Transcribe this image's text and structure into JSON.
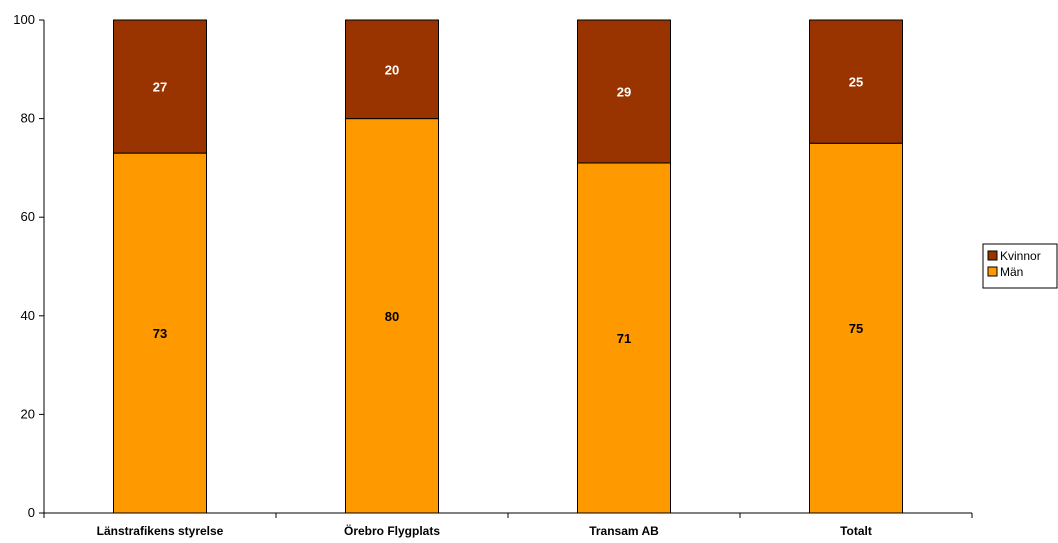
{
  "chart_data": {
    "type": "bar",
    "stacked": true,
    "title": "",
    "xlabel": "",
    "ylabel": "",
    "categories": [
      "Länstrafikens styrelse",
      "Örebro Flygplats",
      "Transam AB",
      "Totalt"
    ],
    "series": [
      {
        "name": "Män",
        "values": [
          73,
          80,
          71,
          75
        ],
        "color": "#FF9900",
        "label_color": "#000000"
      },
      {
        "name": "Kvinnor",
        "values": [
          27,
          20,
          29,
          25
        ],
        "color": "#993300",
        "label_color": "#FFFFFF"
      }
    ],
    "ylim": [
      0,
      100
    ],
    "yticks": [
      0,
      20,
      40,
      60,
      80,
      100
    ],
    "legend_position": "right",
    "legend_order": [
      "Kvinnor",
      "Män"
    ],
    "grid": false
  }
}
